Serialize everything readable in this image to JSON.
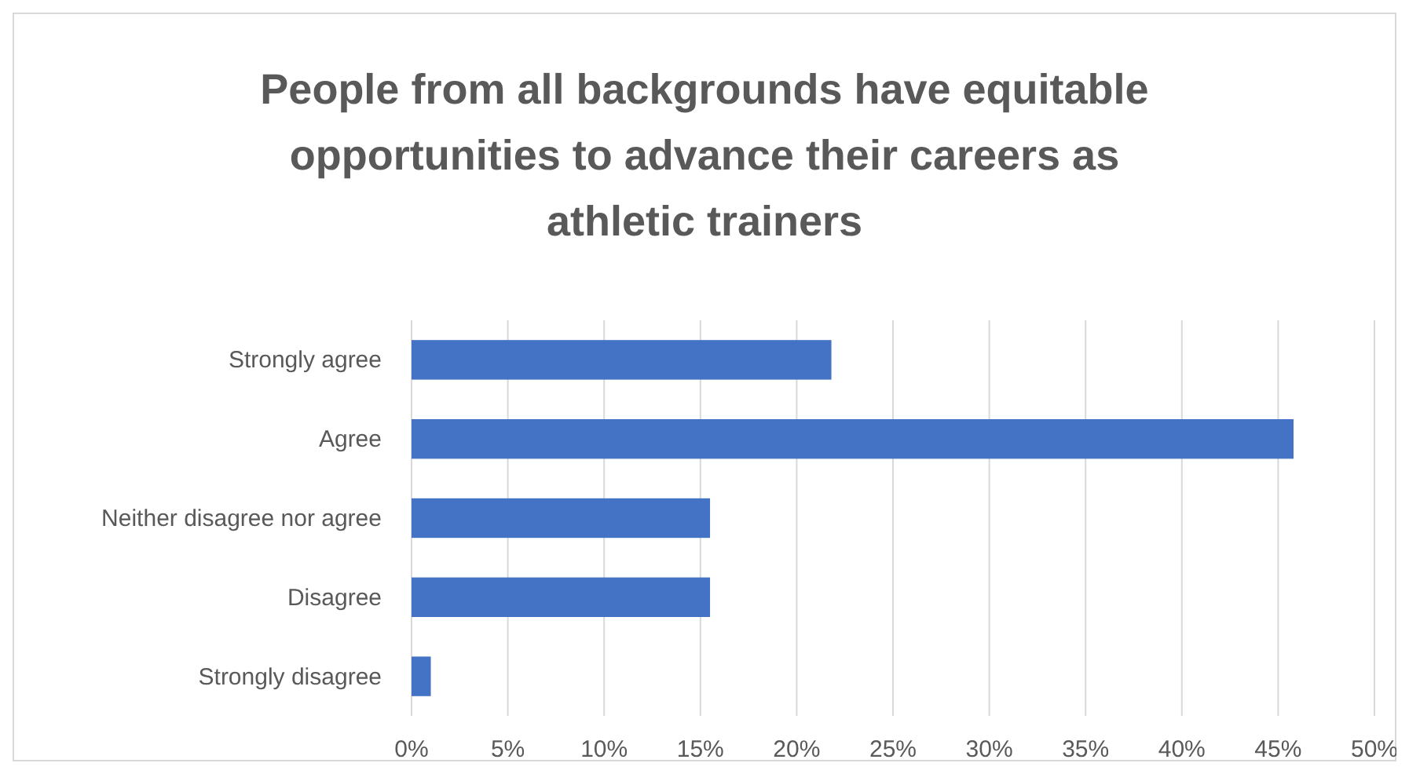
{
  "chart_data": {
    "type": "bar",
    "orientation": "horizontal",
    "title": "People from all backgrounds have equitable opportunities to advance their careers as athletic trainers",
    "categories": [
      "Strongly agree",
      "Agree",
      "Neither disagree nor agree",
      "Disagree",
      "Strongly disagree"
    ],
    "values": [
      21.8,
      45.8,
      15.5,
      15.5,
      1.0
    ],
    "color": "#4472c4",
    "xlim": [
      0,
      50
    ],
    "xticks": [
      {
        "value": 0,
        "label": "0%"
      },
      {
        "value": 5,
        "label": "5%"
      },
      {
        "value": 10,
        "label": "10%"
      },
      {
        "value": 15,
        "label": "15%"
      },
      {
        "value": 20,
        "label": "20%"
      },
      {
        "value": 25,
        "label": "25%"
      },
      {
        "value": 30,
        "label": "30%"
      },
      {
        "value": 35,
        "label": "35%"
      },
      {
        "value": 40,
        "label": "40%"
      },
      {
        "value": 45,
        "label": "45%"
      },
      {
        "value": 50,
        "label": "50%"
      }
    ],
    "grid": "x"
  }
}
